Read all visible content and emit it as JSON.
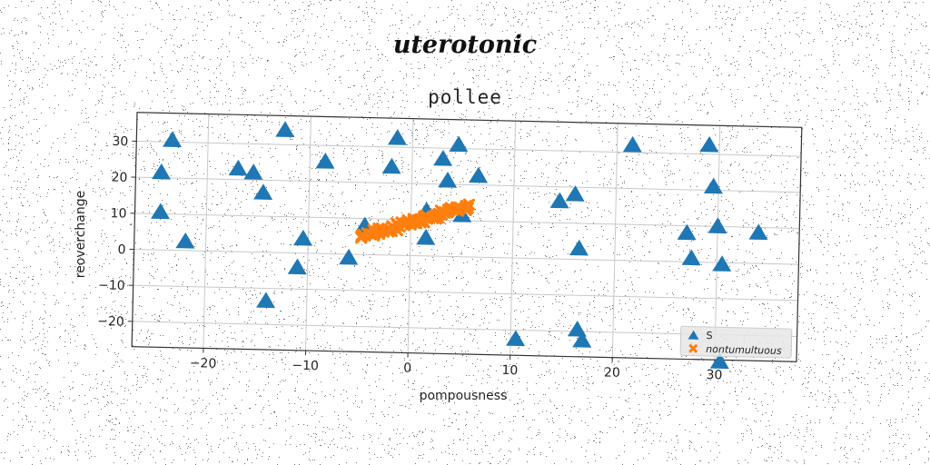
{
  "chart_data": {
    "type": "scatter",
    "suptitle": "uterotonic",
    "title": "pollee",
    "xlabel": "pompousness",
    "ylabel": "reoverchange",
    "xlim": [
      -27,
      38
    ],
    "ylim": [
      -27,
      38
    ],
    "xticks": [
      -20,
      -10,
      0,
      10,
      20,
      30
    ],
    "yticks": [
      -20,
      -10,
      0,
      10,
      20,
      30
    ],
    "grid": true,
    "legend_position": "lower-right",
    "series": [
      {
        "name": "S",
        "marker": "triangle",
        "color": "#1f77b4",
        "points": [
          [
            -23.5,
            30.5
          ],
          [
            -24.5,
            21.5
          ],
          [
            -24.5,
            10.5
          ],
          [
            -22,
            2.5
          ],
          [
            -17,
            23
          ],
          [
            -15.5,
            22
          ],
          [
            -14.5,
            16.5
          ],
          [
            -12.5,
            34
          ],
          [
            -14,
            -13.5
          ],
          [
            -10.5,
            4
          ],
          [
            -11,
            -4
          ],
          [
            -8.5,
            25.5
          ],
          [
            -6,
            -1
          ],
          [
            -4.5,
            8
          ],
          [
            -2,
            24.5
          ],
          [
            -1.5,
            32.5
          ],
          [
            1.5,
            12.5
          ],
          [
            1.5,
            5
          ],
          [
            3,
            27
          ],
          [
            3.5,
            21
          ],
          [
            4.5,
            31
          ],
          [
            5,
            11.5
          ],
          [
            6.5,
            22.5
          ],
          [
            10.5,
            -22.5
          ],
          [
            14.5,
            16
          ],
          [
            16,
            18
          ],
          [
            16.5,
            3
          ],
          [
            16.5,
            -19.5
          ],
          [
            17,
            -22.5
          ],
          [
            21.5,
            32
          ],
          [
            27,
            8
          ],
          [
            27.5,
            1
          ],
          [
            29,
            32.5
          ],
          [
            29.5,
            21
          ],
          [
            30,
            10
          ],
          [
            30.5,
            -0.5
          ],
          [
            34,
            8.5
          ],
          [
            30.5,
            -27.5
          ]
        ]
      },
      {
        "name": "nontumultuous",
        "marker": "x",
        "color": "#ff7f0e",
        "segment": {
          "from": [
            -4.5,
            5
          ],
          "to": [
            5.5,
            14
          ],
          "count": 70
        }
      }
    ]
  }
}
